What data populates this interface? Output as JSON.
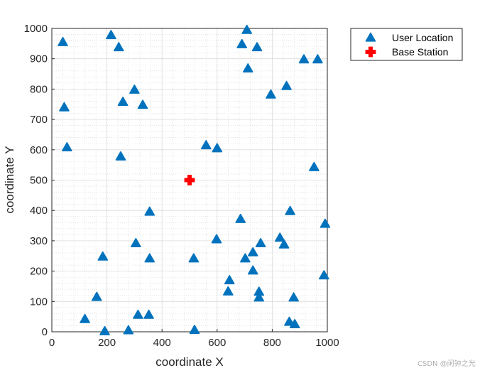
{
  "chart_data": {
    "type": "scatter",
    "xlabel": "coordinate X",
    "ylabel": "coordinate Y",
    "xlim": [
      0,
      1000
    ],
    "ylim": [
      0,
      1000
    ],
    "xticks": [
      0,
      200,
      400,
      600,
      800,
      1000
    ],
    "yticks": [
      0,
      100,
      200,
      300,
      400,
      500,
      600,
      700,
      800,
      900,
      1000
    ],
    "grid": "on (major and minor, dotted)",
    "legend_position": "outside top-right",
    "series": [
      {
        "name": "User Location",
        "marker": "triangle",
        "color": "#0072BD",
        "points": [
          [
            40,
            955
          ],
          [
            215,
            978
          ],
          [
            243,
            938
          ],
          [
            708,
            995
          ],
          [
            690,
            948
          ],
          [
            745,
            938
          ],
          [
            915,
            898
          ],
          [
            965,
            898
          ],
          [
            712,
            868
          ],
          [
            300,
            798
          ],
          [
            795,
            782
          ],
          [
            852,
            810
          ],
          [
            258,
            758
          ],
          [
            330,
            748
          ],
          [
            45,
            740
          ],
          [
            55,
            608
          ],
          [
            250,
            578
          ],
          [
            560,
            615
          ],
          [
            600,
            605
          ],
          [
            952,
            543
          ],
          [
            355,
            396
          ],
          [
            865,
            398
          ],
          [
            685,
            372
          ],
          [
            992,
            356
          ],
          [
            305,
            292
          ],
          [
            598,
            305
          ],
          [
            828,
            310
          ],
          [
            758,
            292
          ],
          [
            843,
            288
          ],
          [
            730,
            262
          ],
          [
            185,
            248
          ],
          [
            355,
            242
          ],
          [
            515,
            242
          ],
          [
            702,
            242
          ],
          [
            730,
            202
          ],
          [
            988,
            186
          ],
          [
            645,
            170
          ],
          [
            640,
            133
          ],
          [
            752,
            132
          ],
          [
            752,
            113
          ],
          [
            163,
            115
          ],
          [
            878,
            113
          ],
          [
            120,
            42
          ],
          [
            313,
            56
          ],
          [
            352,
            56
          ],
          [
            862,
            33
          ],
          [
            882,
            25
          ],
          [
            192,
            2
          ],
          [
            278,
            5
          ],
          [
            518,
            6
          ]
        ]
      },
      {
        "name": "Base Station",
        "marker": "plus",
        "color": "#FF0000",
        "points": [
          [
            500,
            500
          ]
        ]
      }
    ]
  },
  "watermark": "CSDN @闲钟之光"
}
